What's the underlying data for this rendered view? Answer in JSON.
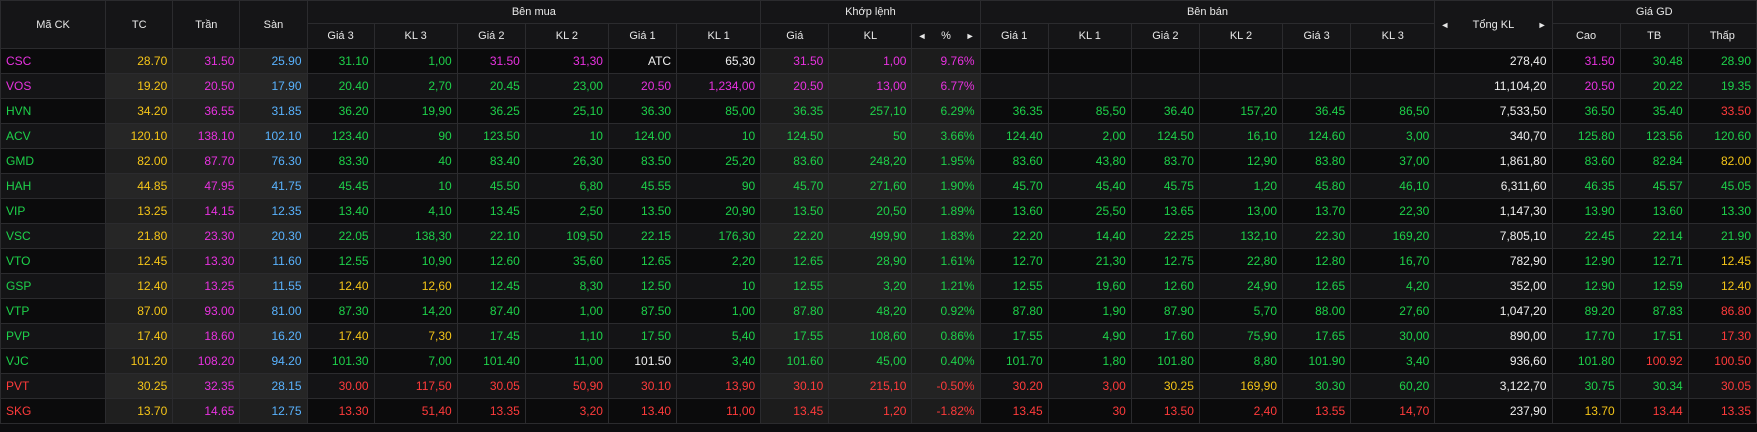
{
  "header": {
    "symbol": "Mã CK",
    "ref": "TC",
    "ceiling": "Trần",
    "floor": "Sàn",
    "buy_group": "Bên mua",
    "match_group": "Khớp lệnh",
    "sell_group": "Bên bán",
    "total_vol": "Tổng KL",
    "price_group": "Giá GD",
    "buy_cols": [
      "Giá 3",
      "KL 3",
      "Giá 2",
      "KL 2",
      "Giá 1",
      "KL 1"
    ],
    "match_cols": [
      "Giá",
      "KL",
      "%"
    ],
    "sell_cols": [
      "Giá 1",
      "KL 1",
      "Giá 2",
      "KL 2",
      "Giá 3",
      "KL 3"
    ],
    "price_cols": [
      "Cao",
      "TB",
      "Thấp"
    ],
    "arrow_left": "◄",
    "arrow_right": "►"
  },
  "colors": {
    "ceiling": "#e832e0",
    "up": "#1ed14a",
    "ref": "#f5c518",
    "down": "#ff3b3b",
    "floor": "#59b3ff",
    "white": "#f0f0f0"
  },
  "rows": [
    {
      "sym": "CSC",
      "symc": "c",
      "tc": "28.70",
      "tran": "31.50",
      "san": "25.90",
      "b": [
        [
          "31.10",
          "u"
        ],
        [
          "1,00",
          "u"
        ],
        [
          "31.50",
          "c"
        ],
        [
          "31,30",
          "c"
        ],
        [
          "ATC",
          "w"
        ],
        [
          "65,30",
          "w"
        ]
      ],
      "m": [
        [
          "31.50",
          "c"
        ],
        [
          "1,00",
          "c"
        ],
        [
          "9.76%",
          "c"
        ]
      ],
      "s": [
        [
          "",
          ""
        ],
        [
          "",
          ""
        ],
        [
          "",
          ""
        ],
        [
          "",
          ""
        ],
        [
          "",
          ""
        ],
        [
          "",
          ""
        ]
      ],
      "total": "278,40",
      "g": [
        [
          "31.50",
          "c"
        ],
        [
          "30.48",
          "u"
        ],
        [
          "28.90",
          "u"
        ]
      ]
    },
    {
      "sym": "VOS",
      "symc": "c",
      "tc": "19.20",
      "tran": "20.50",
      "san": "17.90",
      "b": [
        [
          "20.40",
          "u"
        ],
        [
          "2,70",
          "u"
        ],
        [
          "20.45",
          "u"
        ],
        [
          "23,00",
          "u"
        ],
        [
          "20.50",
          "c"
        ],
        [
          "1,234,00",
          "c"
        ]
      ],
      "m": [
        [
          "20.50",
          "c"
        ],
        [
          "13,00",
          "c"
        ],
        [
          "6.77%",
          "c"
        ]
      ],
      "s": [
        [
          "",
          ""
        ],
        [
          "",
          ""
        ],
        [
          "",
          ""
        ],
        [
          "",
          ""
        ],
        [
          "",
          ""
        ],
        [
          "",
          ""
        ]
      ],
      "total": "11,104,20",
      "g": [
        [
          "20.50",
          "c"
        ],
        [
          "20.22",
          "u"
        ],
        [
          "19.35",
          "u"
        ]
      ]
    },
    {
      "sym": "HVN",
      "symc": "u",
      "tc": "34.20",
      "tran": "36.55",
      "san": "31.85",
      "b": [
        [
          "36.20",
          "u"
        ],
        [
          "19,90",
          "u"
        ],
        [
          "36.25",
          "u"
        ],
        [
          "25,10",
          "u"
        ],
        [
          "36.30",
          "u"
        ],
        [
          "85,00",
          "u"
        ]
      ],
      "m": [
        [
          "36.35",
          "u"
        ],
        [
          "257,10",
          "u"
        ],
        [
          "6.29%",
          "u"
        ]
      ],
      "s": [
        [
          "36.35",
          "u"
        ],
        [
          "85,50",
          "u"
        ],
        [
          "36.40",
          "u"
        ],
        [
          "157,20",
          "u"
        ],
        [
          "36.45",
          "u"
        ],
        [
          "86,50",
          "u"
        ]
      ],
      "total": "7,533,50",
      "g": [
        [
          "36.50",
          "u"
        ],
        [
          "35.40",
          "u"
        ],
        [
          "33.50",
          "d"
        ]
      ]
    },
    {
      "sym": "ACV",
      "symc": "u",
      "tc": "120.10",
      "tran": "138.10",
      "san": "102.10",
      "b": [
        [
          "123.40",
          "u"
        ],
        [
          "90",
          "u"
        ],
        [
          "123.50",
          "u"
        ],
        [
          "10",
          "u"
        ],
        [
          "124.00",
          "u"
        ],
        [
          "10",
          "u"
        ]
      ],
      "m": [
        [
          "124.50",
          "u"
        ],
        [
          "50",
          "u"
        ],
        [
          "3.66%",
          "u"
        ]
      ],
      "s": [
        [
          "124.40",
          "u"
        ],
        [
          "2,00",
          "u"
        ],
        [
          "124.50",
          "u"
        ],
        [
          "16,10",
          "u"
        ],
        [
          "124.60",
          "u"
        ],
        [
          "3,00",
          "u"
        ]
      ],
      "total": "340,70",
      "g": [
        [
          "125.80",
          "u"
        ],
        [
          "123.56",
          "u"
        ],
        [
          "120.60",
          "u"
        ]
      ]
    },
    {
      "sym": "GMD",
      "symc": "u",
      "tc": "82.00",
      "tran": "87.70",
      "san": "76.30",
      "b": [
        [
          "83.30",
          "u"
        ],
        [
          "40",
          "u"
        ],
        [
          "83.40",
          "u"
        ],
        [
          "26,30",
          "u"
        ],
        [
          "83.50",
          "u"
        ],
        [
          "25,20",
          "u"
        ]
      ],
      "m": [
        [
          "83.60",
          "u"
        ],
        [
          "248,20",
          "u"
        ],
        [
          "1.95%",
          "u"
        ]
      ],
      "s": [
        [
          "83.60",
          "u"
        ],
        [
          "43,80",
          "u"
        ],
        [
          "83.70",
          "u"
        ],
        [
          "12,90",
          "u"
        ],
        [
          "83.80",
          "u"
        ],
        [
          "37,00",
          "u"
        ]
      ],
      "total": "1,861,80",
      "g": [
        [
          "83.60",
          "u"
        ],
        [
          "82.84",
          "u"
        ],
        [
          "82.00",
          "r"
        ]
      ]
    },
    {
      "sym": "HAH",
      "symc": "u",
      "tc": "44.85",
      "tran": "47.95",
      "san": "41.75",
      "b": [
        [
          "45.45",
          "u"
        ],
        [
          "10",
          "u"
        ],
        [
          "45.50",
          "u"
        ],
        [
          "6,80",
          "u"
        ],
        [
          "45.55",
          "u"
        ],
        [
          "90",
          "u"
        ]
      ],
      "m": [
        [
          "45.70",
          "u"
        ],
        [
          "271,60",
          "u"
        ],
        [
          "1.90%",
          "u"
        ]
      ],
      "s": [
        [
          "45.70",
          "u"
        ],
        [
          "45,40",
          "u"
        ],
        [
          "45.75",
          "u"
        ],
        [
          "1,20",
          "u"
        ],
        [
          "45.80",
          "u"
        ],
        [
          "46,10",
          "u"
        ]
      ],
      "total": "6,311,60",
      "g": [
        [
          "46.35",
          "u"
        ],
        [
          "45.57",
          "u"
        ],
        [
          "45.05",
          "u"
        ]
      ]
    },
    {
      "sym": "VIP",
      "symc": "u",
      "tc": "13.25",
      "tran": "14.15",
      "san": "12.35",
      "b": [
        [
          "13.40",
          "u"
        ],
        [
          "4,10",
          "u"
        ],
        [
          "13.45",
          "u"
        ],
        [
          "2,50",
          "u"
        ],
        [
          "13.50",
          "u"
        ],
        [
          "20,90",
          "u"
        ]
      ],
      "m": [
        [
          "13.50",
          "u"
        ],
        [
          "20,50",
          "u"
        ],
        [
          "1.89%",
          "u"
        ]
      ],
      "s": [
        [
          "13.60",
          "u"
        ],
        [
          "25,50",
          "u"
        ],
        [
          "13.65",
          "u"
        ],
        [
          "13,00",
          "u"
        ],
        [
          "13.70",
          "u"
        ],
        [
          "22,30",
          "u"
        ]
      ],
      "total": "1,147,30",
      "g": [
        [
          "13.90",
          "u"
        ],
        [
          "13.60",
          "u"
        ],
        [
          "13.30",
          "u"
        ]
      ]
    },
    {
      "sym": "VSC",
      "symc": "u",
      "tc": "21.80",
      "tran": "23.30",
      "san": "20.30",
      "b": [
        [
          "22.05",
          "u"
        ],
        [
          "138,30",
          "u"
        ],
        [
          "22.10",
          "u"
        ],
        [
          "109,50",
          "u"
        ],
        [
          "22.15",
          "u"
        ],
        [
          "176,30",
          "u"
        ]
      ],
      "m": [
        [
          "22.20",
          "u"
        ],
        [
          "499,90",
          "u"
        ],
        [
          "1.83%",
          "u"
        ]
      ],
      "s": [
        [
          "22.20",
          "u"
        ],
        [
          "14,40",
          "u"
        ],
        [
          "22.25",
          "u"
        ],
        [
          "132,10",
          "u"
        ],
        [
          "22.30",
          "u"
        ],
        [
          "169,20",
          "u"
        ]
      ],
      "total": "7,805,10",
      "g": [
        [
          "22.45",
          "u"
        ],
        [
          "22.14",
          "u"
        ],
        [
          "21.90",
          "u"
        ]
      ]
    },
    {
      "sym": "VTO",
      "symc": "u",
      "tc": "12.45",
      "tran": "13.30",
      "san": "11.60",
      "b": [
        [
          "12.55",
          "u"
        ],
        [
          "10,90",
          "u"
        ],
        [
          "12.60",
          "u"
        ],
        [
          "35,60",
          "u"
        ],
        [
          "12.65",
          "u"
        ],
        [
          "2,20",
          "u"
        ]
      ],
      "m": [
        [
          "12.65",
          "u"
        ],
        [
          "28,90",
          "u"
        ],
        [
          "1.61%",
          "u"
        ]
      ],
      "s": [
        [
          "12.70",
          "u"
        ],
        [
          "21,30",
          "u"
        ],
        [
          "12.75",
          "u"
        ],
        [
          "22,80",
          "u"
        ],
        [
          "12.80",
          "u"
        ],
        [
          "16,70",
          "u"
        ]
      ],
      "total": "782,90",
      "g": [
        [
          "12.90",
          "u"
        ],
        [
          "12.71",
          "u"
        ],
        [
          "12.45",
          "r"
        ]
      ]
    },
    {
      "sym": "GSP",
      "symc": "u",
      "tc": "12.40",
      "tran": "13.25",
      "san": "11.55",
      "b": [
        [
          "12.40",
          "r"
        ],
        [
          "12,60",
          "r"
        ],
        [
          "12.45",
          "u"
        ],
        [
          "8,30",
          "u"
        ],
        [
          "12.50",
          "u"
        ],
        [
          "10",
          "u"
        ]
      ],
      "m": [
        [
          "12.55",
          "u"
        ],
        [
          "3,20",
          "u"
        ],
        [
          "1.21%",
          "u"
        ]
      ],
      "s": [
        [
          "12.55",
          "u"
        ],
        [
          "19,60",
          "u"
        ],
        [
          "12.60",
          "u"
        ],
        [
          "24,90",
          "u"
        ],
        [
          "12.65",
          "u"
        ],
        [
          "4,20",
          "u"
        ]
      ],
      "total": "352,00",
      "g": [
        [
          "12.90",
          "u"
        ],
        [
          "12.59",
          "u"
        ],
        [
          "12.40",
          "r"
        ]
      ]
    },
    {
      "sym": "VTP",
      "symc": "u",
      "tc": "87.00",
      "tran": "93.00",
      "san": "81.00",
      "b": [
        [
          "87.30",
          "u"
        ],
        [
          "14,20",
          "u"
        ],
        [
          "87.40",
          "u"
        ],
        [
          "1,00",
          "u"
        ],
        [
          "87.50",
          "u"
        ],
        [
          "1,00",
          "u"
        ]
      ],
      "m": [
        [
          "87.80",
          "u"
        ],
        [
          "48,20",
          "u"
        ],
        [
          "0.92%",
          "u"
        ]
      ],
      "s": [
        [
          "87.80",
          "u"
        ],
        [
          "1,90",
          "u"
        ],
        [
          "87.90",
          "u"
        ],
        [
          "5,70",
          "u"
        ],
        [
          "88.00",
          "u"
        ],
        [
          "27,60",
          "u"
        ]
      ],
      "total": "1,047,20",
      "g": [
        [
          "89.20",
          "u"
        ],
        [
          "87.83",
          "u"
        ],
        [
          "86.80",
          "d"
        ]
      ]
    },
    {
      "sym": "PVP",
      "symc": "u",
      "tc": "17.40",
      "tran": "18.60",
      "san": "16.20",
      "b": [
        [
          "17.40",
          "r"
        ],
        [
          "7,30",
          "r"
        ],
        [
          "17.45",
          "u"
        ],
        [
          "1,10",
          "u"
        ],
        [
          "17.50",
          "u"
        ],
        [
          "5,40",
          "u"
        ]
      ],
      "m": [
        [
          "17.55",
          "u"
        ],
        [
          "108,60",
          "u"
        ],
        [
          "0.86%",
          "u"
        ]
      ],
      "s": [
        [
          "17.55",
          "u"
        ],
        [
          "4,90",
          "u"
        ],
        [
          "17.60",
          "u"
        ],
        [
          "75,90",
          "u"
        ],
        [
          "17.65",
          "u"
        ],
        [
          "30,00",
          "u"
        ]
      ],
      "total": "890,00",
      "g": [
        [
          "17.70",
          "u"
        ],
        [
          "17.51",
          "u"
        ],
        [
          "17.30",
          "d"
        ]
      ]
    },
    {
      "sym": "VJC",
      "symc": "u",
      "tc": "101.20",
      "tran": "108.20",
      "san": "94.20",
      "b": [
        [
          "101.30",
          "u"
        ],
        [
          "7,00",
          "u"
        ],
        [
          "101.40",
          "u"
        ],
        [
          "11,00",
          "u"
        ],
        [
          "101.50",
          "w"
        ],
        [
          "3,40",
          "u"
        ]
      ],
      "m": [
        [
          "101.60",
          "u"
        ],
        [
          "45,00",
          "u"
        ],
        [
          "0.40%",
          "u"
        ]
      ],
      "s": [
        [
          "101.70",
          "u"
        ],
        [
          "1,80",
          "u"
        ],
        [
          "101.80",
          "u"
        ],
        [
          "8,80",
          "u"
        ],
        [
          "101.90",
          "u"
        ],
        [
          "3,40",
          "u"
        ]
      ],
      "total": "936,60",
      "g": [
        [
          "101.80",
          "u"
        ],
        [
          "100.92",
          "d"
        ],
        [
          "100.50",
          "d"
        ]
      ]
    },
    {
      "sym": "PVT",
      "symc": "d",
      "tc": "30.25",
      "tran": "32.35",
      "san": "28.15",
      "b": [
        [
          "30.00",
          "d"
        ],
        [
          "117,50",
          "d"
        ],
        [
          "30.05",
          "d"
        ],
        [
          "50,90",
          "d"
        ],
        [
          "30.10",
          "d"
        ],
        [
          "13,90",
          "d"
        ]
      ],
      "m": [
        [
          "30.10",
          "d"
        ],
        [
          "215,10",
          "d"
        ],
        [
          "-0.50%",
          "d"
        ]
      ],
      "s": [
        [
          "30.20",
          "d"
        ],
        [
          "3,00",
          "d"
        ],
        [
          "30.25",
          "r"
        ],
        [
          "169,90",
          "r"
        ],
        [
          "30.30",
          "u"
        ],
        [
          "60,20",
          "u"
        ]
      ],
      "total": "3,122,70",
      "g": [
        [
          "30.75",
          "u"
        ],
        [
          "30.34",
          "u"
        ],
        [
          "30.05",
          "d"
        ]
      ]
    },
    {
      "sym": "SKG",
      "symc": "d",
      "tc": "13.70",
      "tran": "14.65",
      "san": "12.75",
      "b": [
        [
          "13.30",
          "d"
        ],
        [
          "51,40",
          "d"
        ],
        [
          "13.35",
          "d"
        ],
        [
          "3,20",
          "d"
        ],
        [
          "13.40",
          "d"
        ],
        [
          "11,00",
          "d"
        ]
      ],
      "m": [
        [
          "13.45",
          "d"
        ],
        [
          "1,20",
          "d"
        ],
        [
          "-1.82%",
          "d"
        ]
      ],
      "s": [
        [
          "13.45",
          "d"
        ],
        [
          "30",
          "d"
        ],
        [
          "13.50",
          "d"
        ],
        [
          "2,40",
          "d"
        ],
        [
          "13.55",
          "d"
        ],
        [
          "14,70",
          "d"
        ]
      ],
      "total": "237,90",
      "g": [
        [
          "13.70",
          "r"
        ],
        [
          "13.44",
          "d"
        ],
        [
          "13.35",
          "d"
        ]
      ]
    }
  ]
}
